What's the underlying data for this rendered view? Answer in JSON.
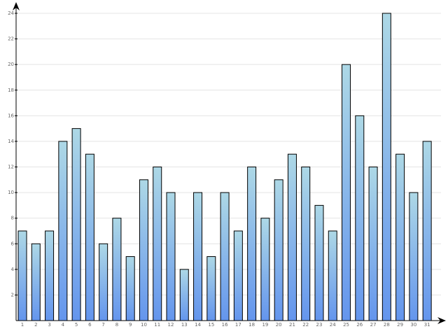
{
  "chart_data": {
    "type": "bar",
    "categories": [
      "1",
      "2",
      "3",
      "4",
      "5",
      "6",
      "7",
      "8",
      "9",
      "10",
      "11",
      "12",
      "13",
      "14",
      "15",
      "16",
      "17",
      "18",
      "19",
      "20",
      "21",
      "22",
      "23",
      "24",
      "25",
      "26",
      "27",
      "28",
      "29",
      "30",
      "31"
    ],
    "values": [
      7,
      6,
      7,
      14,
      15,
      13,
      6,
      8,
      5,
      11,
      12,
      10,
      4,
      10,
      5,
      10,
      7,
      12,
      8,
      11,
      13,
      12,
      9,
      7,
      20,
      16,
      12,
      24,
      13,
      10,
      14
    ],
    "gradient": [
      "#add8e6",
      "#6495ed"
    ],
    "ylim": [
      0,
      24
    ],
    "yticks": [
      2,
      4,
      6,
      8,
      10,
      12,
      14,
      16,
      18,
      20,
      22,
      24
    ],
    "grid": true
  }
}
